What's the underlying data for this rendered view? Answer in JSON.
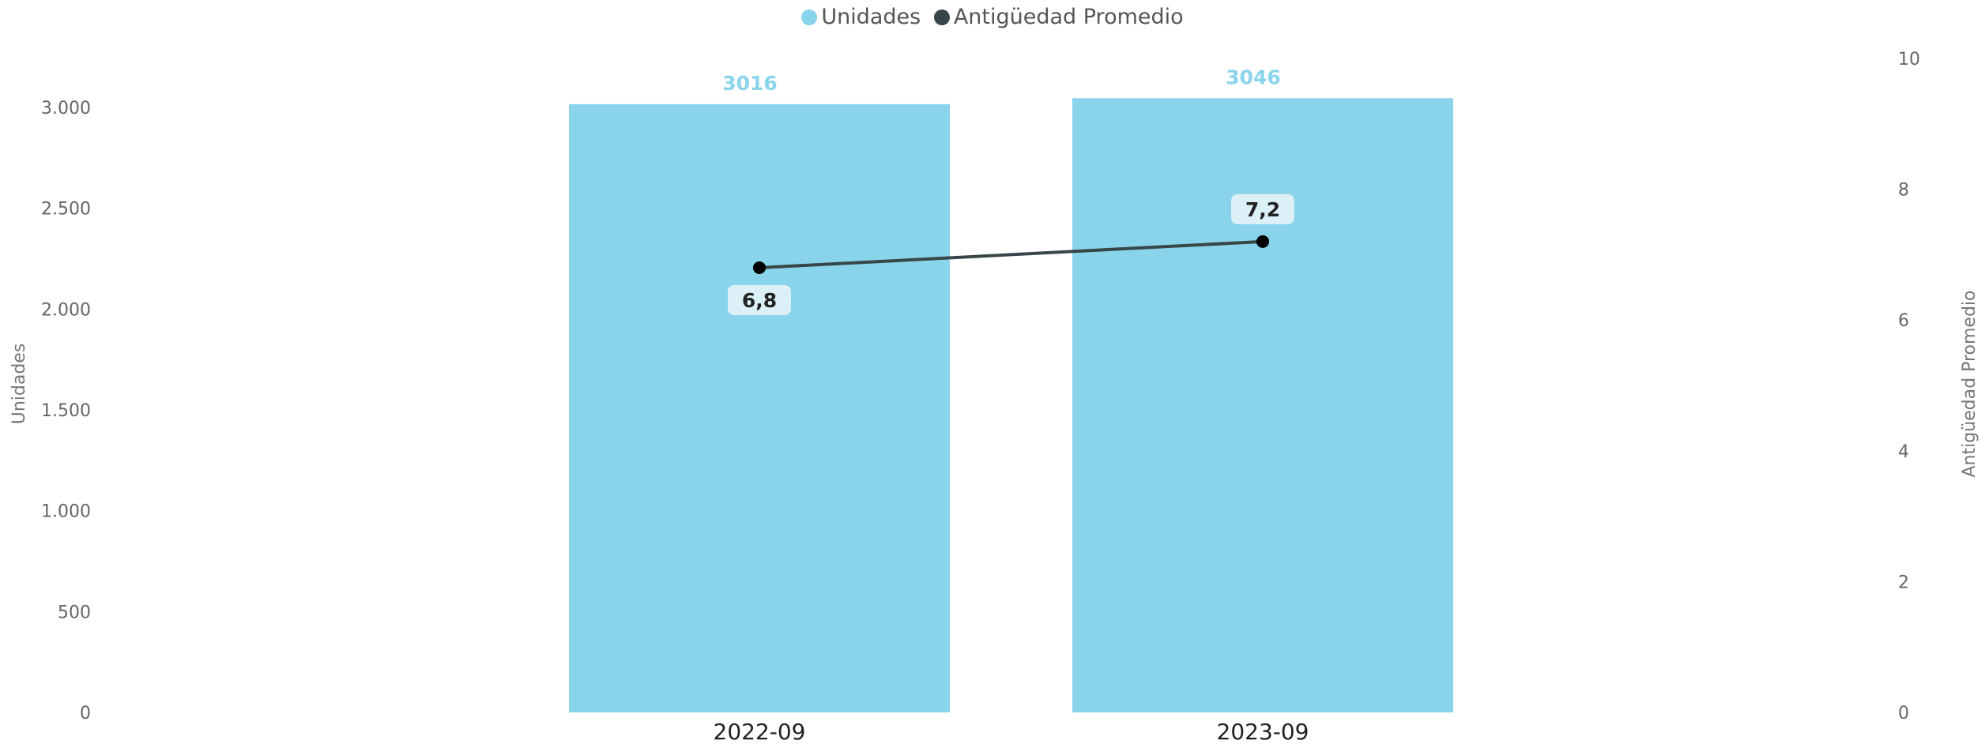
{
  "chart_data": {
    "type": "bar",
    "categories": [
      "2022-09",
      "2023-09"
    ],
    "series": [
      {
        "name": "Unidades",
        "kind": "bar",
        "axis": "left",
        "values": [
          3016,
          3046
        ],
        "labels": [
          "3016",
          "3046"
        ],
        "color": "#8AD4EB"
      },
      {
        "name": "Antigüedad Promedio",
        "kind": "line",
        "axis": "right",
        "values": [
          6.8,
          7.2
        ],
        "labels": [
          "6,8",
          "7,2"
        ],
        "color": "#374649"
      }
    ],
    "y_left": {
      "label": "Unidades",
      "ylim": [
        0,
        3000
      ],
      "ticks": [
        0,
        500,
        1000,
        1500,
        2000,
        2500,
        3000
      ],
      "tick_labels": [
        "0",
        "500",
        "1.000",
        "1.500",
        "2.000",
        "2.500",
        "3.000"
      ]
    },
    "y_right": {
      "label": "Antigüedad Promedio",
      "ylim": [
        0,
        10
      ],
      "ticks": [
        0,
        2,
        4,
        6,
        8,
        10
      ],
      "tick_labels": [
        "0",
        "2",
        "4",
        "6",
        "8",
        "10"
      ]
    },
    "legend_position": "top-center",
    "grid": false,
    "label_box_color": "#DCF0F7",
    "marker_color": "#000000"
  }
}
